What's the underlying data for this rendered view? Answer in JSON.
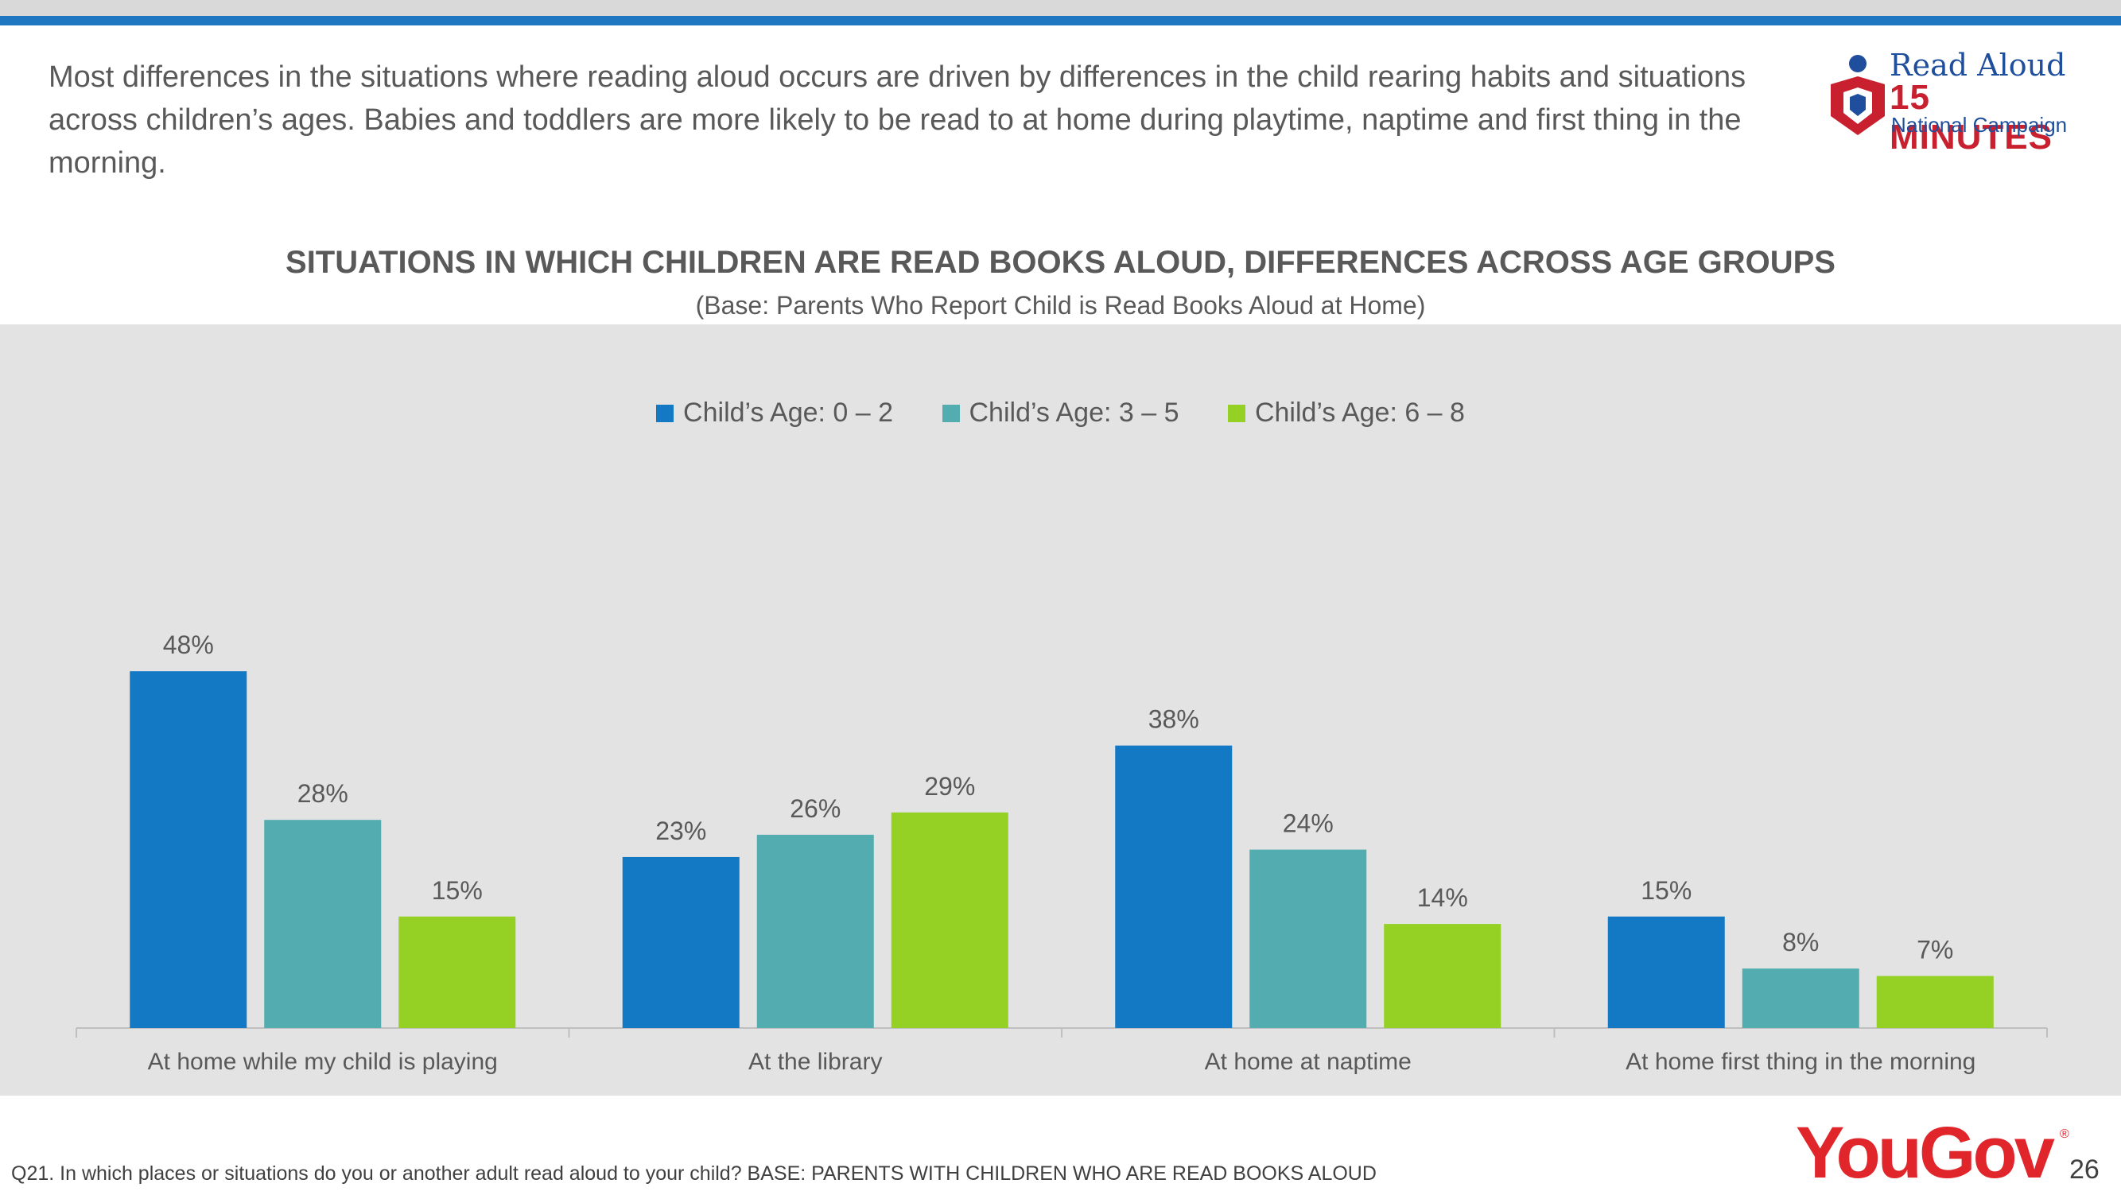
{
  "header": {
    "headline": "Most differences in the situations where reading aloud occurs are driven by differences in the child rearing habits and situations across children’s ages. Babies and toddlers are more likely to be read to at home during playtime, naptime and first thing in the morning."
  },
  "logo": {
    "line1": "Read Aloud",
    "line2": "15 MINUTES",
    "line3": "National Campaign"
  },
  "chart_data": {
    "type": "bar",
    "title": "SITUATIONS IN WHICH CHILDREN ARE READ BOOKS ALOUD, DIFFERENCES ACROSS AGE GROUPS",
    "subtitle": "(Base: Parents Who Report Child is Read Books Aloud at Home)",
    "categories": [
      "At home while my child is playing",
      "At the library",
      "At home at naptime",
      "At home first thing in the morning"
    ],
    "series": [
      {
        "name": "Child’s Age: 0 – 2",
        "color": "#1479c4",
        "values": [
          48,
          23,
          38,
          15
        ],
        "labels": [
          "48%",
          "23%",
          "38%",
          "15%"
        ]
      },
      {
        "name": "Child’s Age: 3 – 5",
        "color": "#53adb0",
        "values": [
          28,
          26,
          24,
          8
        ],
        "labels": [
          "28%",
          "26%",
          "24%",
          "8%"
        ]
      },
      {
        "name": "Child’s Age: 6 – 8",
        "color": "#95d025",
        "values": [
          15,
          29,
          14,
          7
        ],
        "labels": [
          "15%",
          "29%",
          "14%",
          "7%"
        ]
      }
    ],
    "ylim": [
      0,
      70
    ],
    "legend_position": "top-center",
    "grid": false
  },
  "footer": {
    "footnote": "Q21. In which places or situations do you or another adult read aloud to your child? BASE: PARENTS WITH CHILDREN WHO ARE READ BOOKS ALOUD",
    "brand": "YouGov",
    "page_number": "26"
  }
}
